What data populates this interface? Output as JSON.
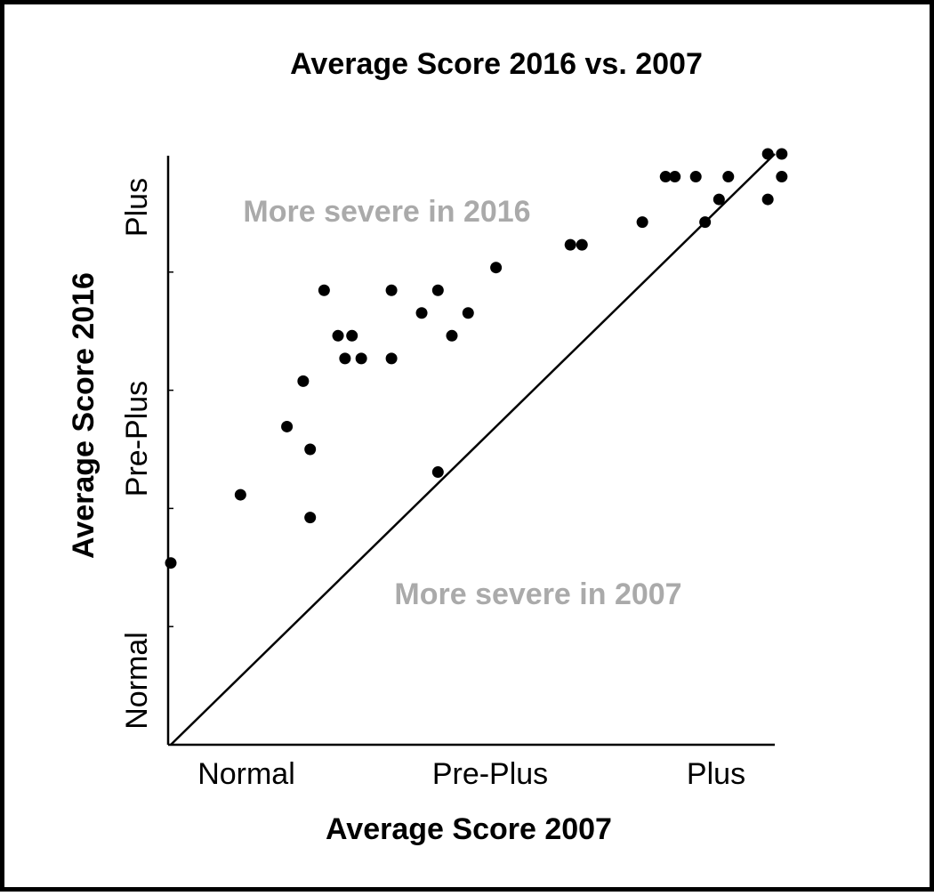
{
  "chart_data": {
    "type": "scatter",
    "title": "Average Score 2016 vs. 2007",
    "xlabel": "Average Score 2007",
    "ylabel": "Average Score 2016",
    "x_ticks": [
      {
        "label": "Normal",
        "value": 0.33
      },
      {
        "label": "Pre-Plus",
        "value": 1.33
      },
      {
        "label": "Plus",
        "value": 2.33
      }
    ],
    "y_ticks": [
      {
        "label": "Normal",
        "value": 0.33
      },
      {
        "label": "Pre-Plus",
        "value": 1.33
      },
      {
        "label": "Plus",
        "value": 2.33
      }
    ],
    "xlim": [
      0,
      2.6
    ],
    "ylim": [
      0,
      2.6
    ],
    "grid": false,
    "identity_line": true,
    "annotations": [
      {
        "text": "More severe in 2016",
        "color": "#aaaaaa"
      },
      {
        "text": "More severe in 2007",
        "color": "#aaaaaa"
      }
    ],
    "colors": {
      "points": "#000000",
      "axes": "#000000",
      "annotation": "#aaaaaa"
    },
    "points": [
      {
        "x": 0.0,
        "y": 0.8
      },
      {
        "x": 0.3,
        "y": 1.1
      },
      {
        "x": 0.5,
        "y": 1.4
      },
      {
        "x": 0.6,
        "y": 1.0
      },
      {
        "x": 0.6,
        "y": 1.3
      },
      {
        "x": 0.57,
        "y": 1.6
      },
      {
        "x": 0.66,
        "y": 2.0
      },
      {
        "x": 0.72,
        "y": 1.8
      },
      {
        "x": 0.78,
        "y": 1.8
      },
      {
        "x": 0.75,
        "y": 1.7
      },
      {
        "x": 0.82,
        "y": 1.7
      },
      {
        "x": 0.95,
        "y": 1.7
      },
      {
        "x": 0.95,
        "y": 2.0
      },
      {
        "x": 1.08,
        "y": 1.9
      },
      {
        "x": 1.15,
        "y": 2.0
      },
      {
        "x": 1.21,
        "y": 1.8
      },
      {
        "x": 1.28,
        "y": 1.9
      },
      {
        "x": 1.15,
        "y": 1.2
      },
      {
        "x": 1.4,
        "y": 2.1
      },
      {
        "x": 1.72,
        "y": 2.2
      },
      {
        "x": 1.77,
        "y": 2.2
      },
      {
        "x": 2.03,
        "y": 2.3
      },
      {
        "x": 2.13,
        "y": 2.5
      },
      {
        "x": 2.17,
        "y": 2.5
      },
      {
        "x": 2.26,
        "y": 2.5
      },
      {
        "x": 2.3,
        "y": 2.3
      },
      {
        "x": 2.36,
        "y": 2.4
      },
      {
        "x": 2.4,
        "y": 2.5
      },
      {
        "x": 2.57,
        "y": 2.4
      },
      {
        "x": 2.57,
        "y": 2.6
      },
      {
        "x": 2.63,
        "y": 2.6
      },
      {
        "x": 2.63,
        "y": 2.5
      }
    ]
  }
}
